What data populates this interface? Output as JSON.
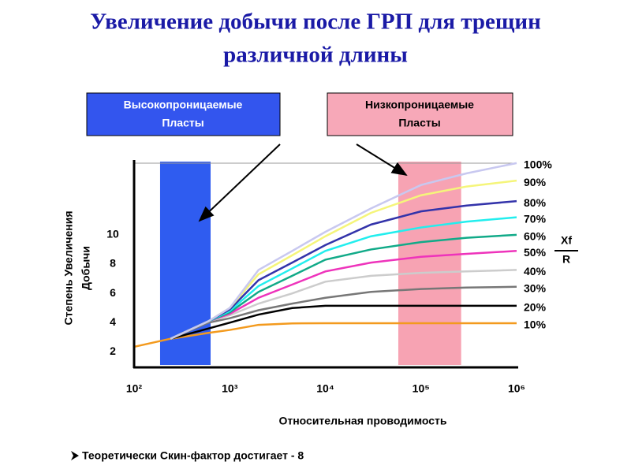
{
  "chart_data": {
    "type": "line",
    "title": [
      "Увеличение добычи после ГРП для трещин",
      "различной длины"
    ],
    "xlabel": "Относительная проводимость",
    "ylabel": [
      "Степень Увеличения",
      "Добычи"
    ],
    "xscale": "log",
    "x": [
      100,
      240,
      600,
      1000,
      2000,
      4500,
      10000,
      30000,
      100000,
      300000,
      1000000
    ],
    "xlim": [
      100,
      1000000
    ],
    "xticks": [
      {
        "value": 100,
        "label": "10²"
      },
      {
        "value": 1000,
        "label": "10³"
      },
      {
        "value": 10000,
        "label": "10⁴"
      },
      {
        "value": 100000,
        "label": "10⁵"
      },
      {
        "value": 1000000,
        "label": "10⁶"
      }
    ],
    "ylim": [
      1,
      15
    ],
    "yticks": [
      2,
      4,
      6,
      8,
      10
    ],
    "series": [
      {
        "name": "10%",
        "color": "#f39a1e",
        "values": [
          2.35,
          2.9,
          3.3,
          3.5,
          3.85,
          3.95,
          3.96,
          3.96,
          3.96,
          3.96,
          3.96
        ]
      },
      {
        "name": "20%",
        "color": "#000000",
        "values": [
          null,
          2.9,
          3.6,
          4.0,
          4.55,
          5.0,
          5.15,
          5.15,
          5.15,
          5.15,
          5.15
        ]
      },
      {
        "name": "30%",
        "color": "#777777",
        "values": [
          null,
          2.9,
          4.0,
          4.3,
          4.85,
          5.3,
          5.7,
          6.1,
          6.3,
          6.4,
          6.45
        ]
      },
      {
        "name": "40%",
        "color": "#cccccc",
        "values": [
          null,
          2.9,
          4.1,
          4.5,
          5.3,
          6.0,
          6.8,
          7.2,
          7.4,
          7.5,
          7.6
        ]
      },
      {
        "name": "50%",
        "color": "#ee33bb",
        "values": [
          null,
          2.9,
          4.1,
          4.6,
          5.7,
          6.6,
          7.5,
          8.1,
          8.5,
          8.7,
          8.9
        ]
      },
      {
        "name": "60%",
        "color": "#11aa88",
        "values": [
          null,
          2.9,
          4.1,
          4.7,
          6.1,
          7.2,
          8.3,
          9.0,
          9.5,
          9.8,
          10.0
        ]
      },
      {
        "name": "70%",
        "color": "#22eeee",
        "values": [
          null,
          2.9,
          4.1,
          4.8,
          6.5,
          7.7,
          8.9,
          9.9,
          10.5,
          10.9,
          11.2
        ]
      },
      {
        "name": "80%",
        "color": "#3333aa",
        "values": [
          null,
          2.9,
          4.1,
          4.9,
          6.9,
          8.1,
          9.3,
          10.7,
          11.6,
          12.0,
          12.3
        ]
      },
      {
        "name": "90%",
        "color": "#f5f57a",
        "values": [
          null,
          2.9,
          4.1,
          5.0,
          7.3,
          8.6,
          9.9,
          11.5,
          12.7,
          13.3,
          13.7
        ]
      },
      {
        "name": "100%",
        "color": "#c8c8f0",
        "values": [
          null,
          2.9,
          4.1,
          5.0,
          7.6,
          8.9,
          10.2,
          11.8,
          13.4,
          14.2,
          14.9
        ]
      }
    ],
    "bands": [
      {
        "label": [
          "Высокопроницаемые",
          "Пласты"
        ],
        "xrange": [
          187,
          631
        ],
        "color": "#2f5cf0"
      },
      {
        "label": [
          "Низкопроницаемые",
          "Пласты"
        ],
        "xrange": [
          57900,
          263000
        ],
        "color": "#f7a3b3"
      }
    ],
    "annotation": [
      "Xf",
      "R"
    ],
    "footnote": "Теоретически Скин-фактор достигает  - 8"
  }
}
